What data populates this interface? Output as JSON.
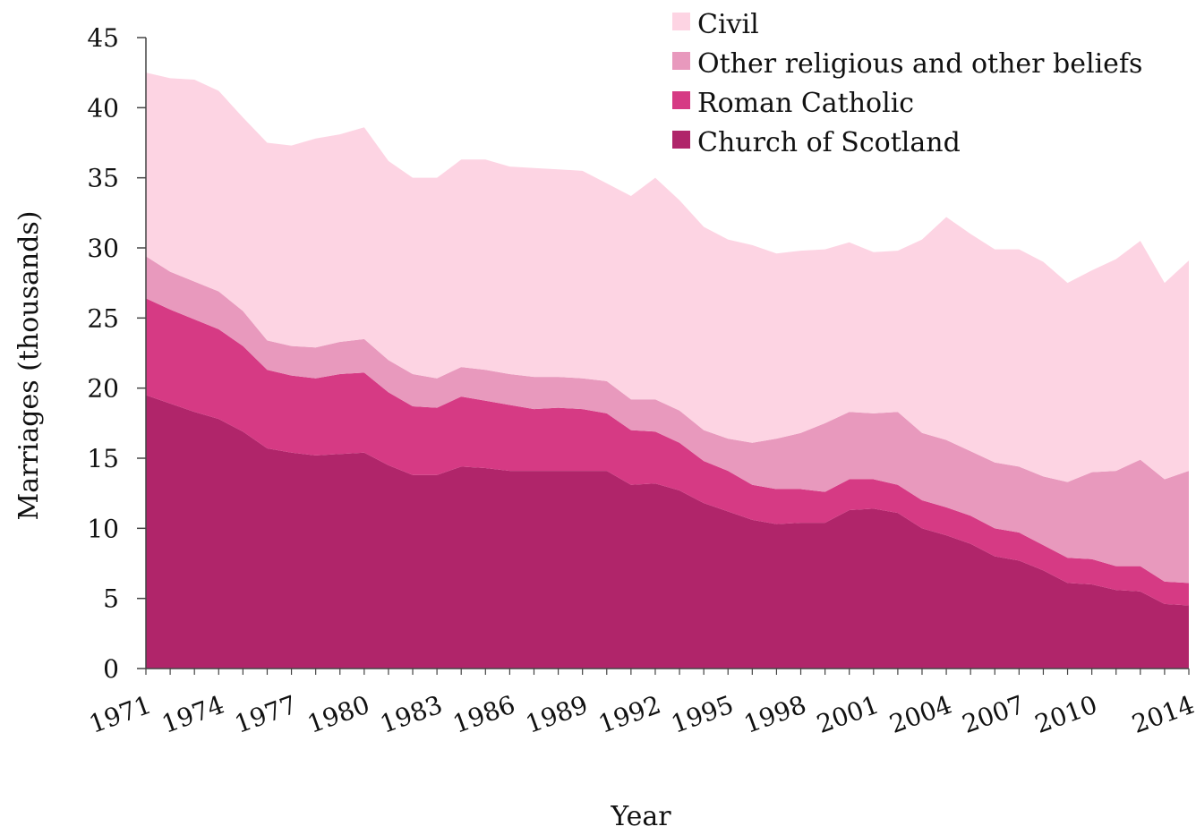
{
  "chart_data": {
    "type": "area",
    "stacked": true,
    "xlabel": "Year",
    "ylabel": "Marriages (thousands)",
    "ylim": [
      0,
      45
    ],
    "yticks": [
      0,
      5,
      10,
      15,
      20,
      25,
      30,
      35,
      40,
      45
    ],
    "xlim": [
      1971,
      2014
    ],
    "xticks": [
      1971,
      1974,
      1977,
      1980,
      1983,
      1986,
      1989,
      1992,
      1995,
      1998,
      2001,
      2004,
      2007,
      2010,
      2014
    ],
    "grid": false,
    "legend_position": "top-right",
    "x": [
      1971,
      1972,
      1973,
      1974,
      1975,
      1976,
      1977,
      1978,
      1979,
      1980,
      1981,
      1982,
      1983,
      1984,
      1985,
      1986,
      1987,
      1988,
      1989,
      1990,
      1991,
      1992,
      1993,
      1994,
      1995,
      1996,
      1997,
      1998,
      1999,
      2000,
      2001,
      2002,
      2003,
      2004,
      2005,
      2006,
      2007,
      2008,
      2009,
      2010,
      2011,
      2012,
      2013,
      2014
    ],
    "series": [
      {
        "name": "Church of Scotland",
        "color": "#b0256a",
        "values": [
          19.5,
          18.9,
          18.3,
          17.8,
          16.9,
          15.7,
          15.4,
          15.2,
          15.3,
          15.4,
          14.5,
          13.8,
          13.8,
          14.4,
          14.3,
          14.1,
          14.1,
          14.1,
          14.1,
          14.1,
          13.1,
          13.2,
          12.7,
          11.8,
          11.2,
          10.6,
          10.3,
          10.4,
          10.4,
          11.3,
          11.4,
          11.1,
          10.0,
          9.5,
          8.9,
          8.0,
          7.7,
          7.0,
          6.1,
          6.0,
          5.6,
          5.5,
          4.6,
          4.5
        ]
      },
      {
        "name": "Roman Catholic",
        "color": "#d63a84",
        "values": [
          6.9,
          6.7,
          6.6,
          6.4,
          6.1,
          5.6,
          5.5,
          5.5,
          5.7,
          5.7,
          5.2,
          4.9,
          4.8,
          5.0,
          4.8,
          4.7,
          4.4,
          4.5,
          4.4,
          4.1,
          3.9,
          3.7,
          3.4,
          3.0,
          2.9,
          2.5,
          2.5,
          2.4,
          2.2,
          2.2,
          2.1,
          2.0,
          2.0,
          2.0,
          2.0,
          2.0,
          2.0,
          1.8,
          1.8,
          1.8,
          1.7,
          1.8,
          1.6,
          1.6
        ]
      },
      {
        "name": "Other religious and other beliefs",
        "color": "#e899bd",
        "values": [
          3.0,
          2.7,
          2.7,
          2.7,
          2.5,
          2.1,
          2.1,
          2.2,
          2.3,
          2.4,
          2.3,
          2.3,
          2.1,
          2.1,
          2.2,
          2.2,
          2.3,
          2.2,
          2.2,
          2.3,
          2.2,
          2.3,
          2.3,
          2.2,
          2.3,
          3.0,
          3.6,
          4.0,
          4.9,
          4.8,
          4.7,
          5.2,
          4.8,
          4.8,
          4.6,
          4.7,
          4.7,
          4.9,
          5.4,
          6.2,
          6.8,
          7.6,
          7.3,
          8.0
        ]
      },
      {
        "name": "Civil",
        "color": "#fdd4e3",
        "values": [
          13.1,
          13.8,
          14.4,
          14.3,
          13.8,
          14.1,
          14.3,
          14.9,
          14.8,
          15.1,
          14.2,
          14.0,
          14.3,
          14.8,
          15.0,
          14.8,
          14.9,
          14.8,
          14.8,
          14.1,
          14.5,
          15.8,
          15.0,
          14.5,
          14.2,
          14.1,
          13.2,
          13.0,
          12.4,
          12.1,
          11.5,
          11.5,
          13.8,
          15.9,
          15.5,
          15.2,
          15.5,
          15.3,
          14.2,
          14.4,
          15.1,
          15.6,
          14.0,
          15.0
        ]
      }
    ],
    "legend_order": [
      "Civil",
      "Other religious and other beliefs",
      "Roman Catholic",
      "Church of Scotland"
    ]
  }
}
